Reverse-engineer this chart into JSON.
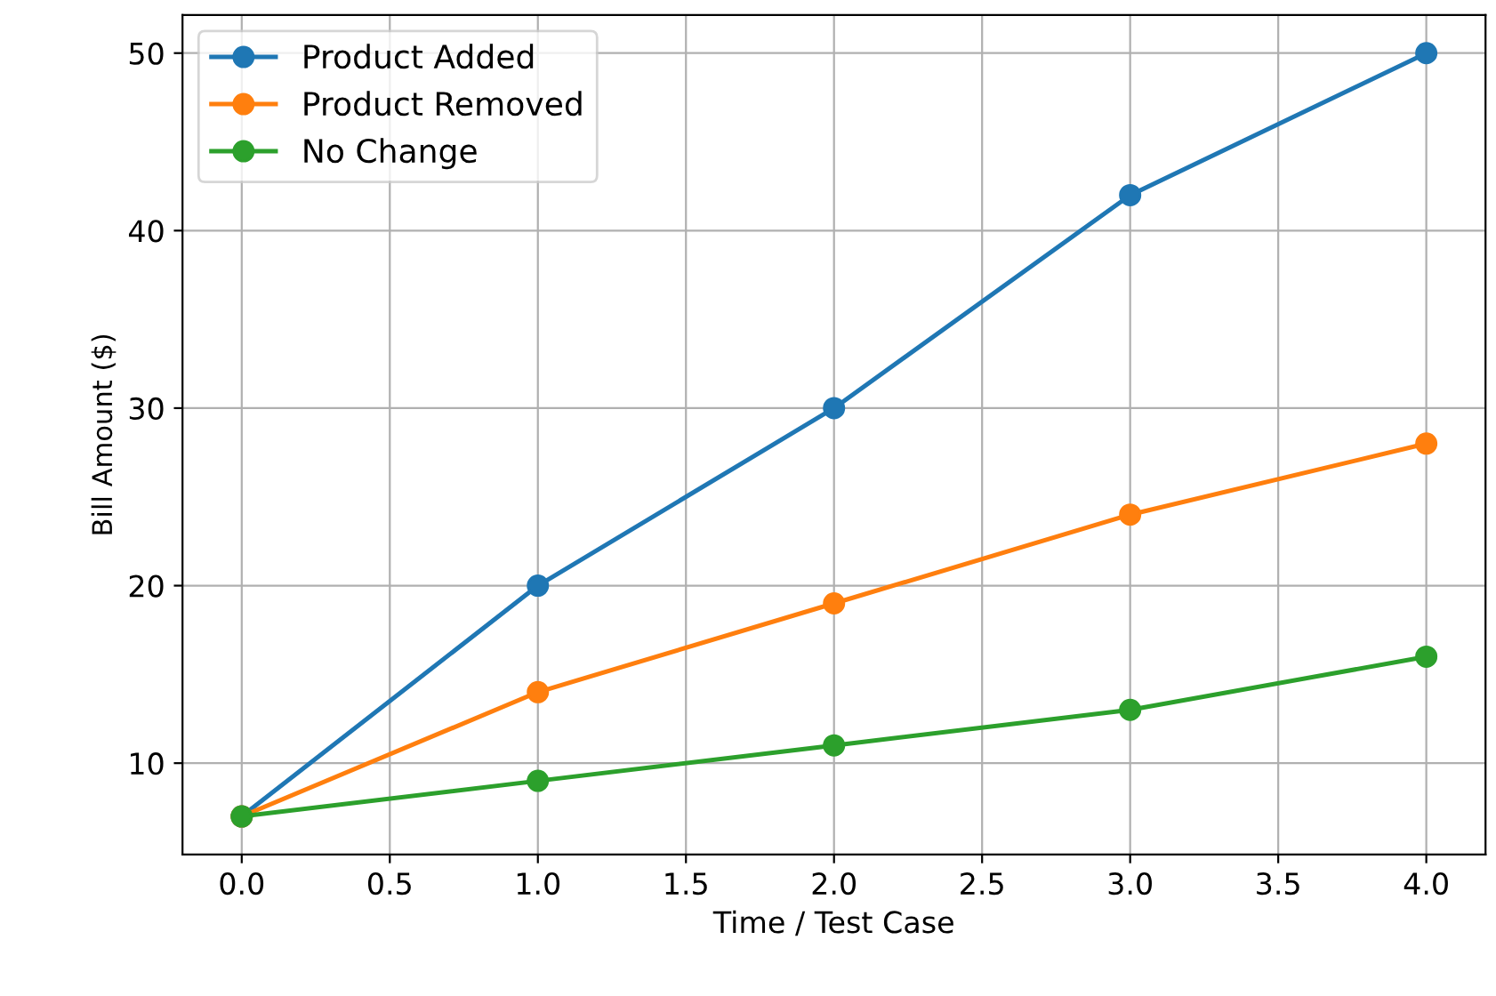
{
  "chart_data": {
    "type": "line",
    "xlabel": "Time / Test Case",
    "ylabel": "Bill Amount ($)",
    "x": [
      0,
      1,
      2,
      3,
      4
    ],
    "series": [
      {
        "name": "Product Added",
        "color": "#1f77b4",
        "values": [
          7,
          20,
          30,
          42,
          50
        ]
      },
      {
        "name": "Product Removed",
        "color": "#ff7f0e",
        "values": [
          7,
          14,
          19,
          24,
          28
        ]
      },
      {
        "name": "No Change",
        "color": "#2ca02c",
        "values": [
          7,
          9,
          11,
          13,
          16
        ]
      }
    ],
    "xlim": [
      -0.2,
      4.2
    ],
    "ylim": [
      4.85,
      52.15
    ],
    "xticks": [
      {
        "value": 0,
        "label": "0.0"
      },
      {
        "value": 0.5,
        "label": "0.5"
      },
      {
        "value": 1,
        "label": "1.0"
      },
      {
        "value": 1.5,
        "label": "1.5"
      },
      {
        "value": 2,
        "label": "2.0"
      },
      {
        "value": 2.5,
        "label": "2.5"
      },
      {
        "value": 3,
        "label": "3.0"
      },
      {
        "value": 3.5,
        "label": "3.5"
      },
      {
        "value": 4,
        "label": "4.0"
      }
    ],
    "yticks": [
      10,
      20,
      30,
      40,
      50
    ],
    "grid": true,
    "legend": "top left",
    "marker": "circle",
    "line_style": "solid"
  }
}
